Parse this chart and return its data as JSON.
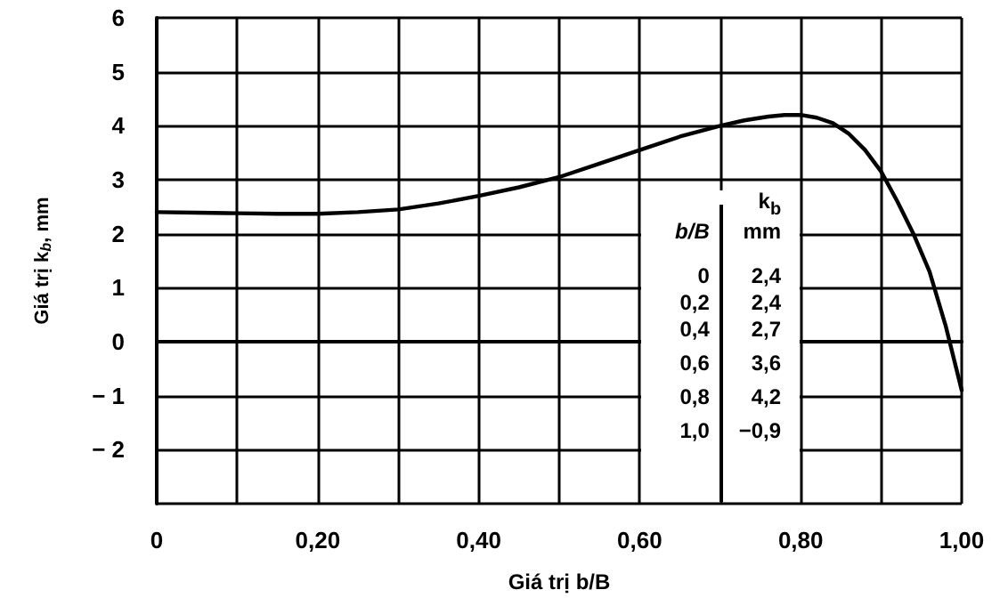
{
  "chart_data": {
    "type": "line",
    "xlabel": "Giá trị b/B",
    "ylabel": "Giá trị k$_{b}$, mm",
    "x": [
      0,
      0.05,
      0.1,
      0.15,
      0.2,
      0.25,
      0.3,
      0.35,
      0.4,
      0.45,
      0.5,
      0.55,
      0.6,
      0.65,
      0.7,
      0.73,
      0.76,
      0.78,
      0.8,
      0.82,
      0.84,
      0.86,
      0.88,
      0.9,
      0.92,
      0.94,
      0.96,
      0.98,
      1.0
    ],
    "series": [
      {
        "color": "#000000",
        "values": [
          2.4,
          2.39,
          2.38,
          2.37,
          2.37,
          2.4,
          2.45,
          2.56,
          2.7,
          2.86,
          3.05,
          3.3,
          3.55,
          3.8,
          4.0,
          4.1,
          4.17,
          4.2,
          4.2,
          4.15,
          4.05,
          3.85,
          3.55,
          3.15,
          2.6,
          2.0,
          1.3,
          0.3,
          -0.9
        ]
      }
    ],
    "xlim": [
      0,
      1
    ],
    "ylim": [
      -3,
      6
    ],
    "xticks": [
      0,
      {
        "value": 0.1,
        "label": null
      },
      {
        "value": 0.2,
        "label": "0,20"
      },
      {
        "value": 0.3,
        "label": null
      },
      {
        "value": 0.4,
        "label": "0,40"
      },
      {
        "value": 0.5,
        "label": null
      },
      {
        "value": 0.6,
        "label": "0,60"
      },
      {
        "value": 0.7,
        "label": null
      },
      {
        "value": 0.8,
        "label": "0,80"
      },
      {
        "value": 0.9,
        "label": null
      },
      {
        "value": 1,
        "label": "1,00"
      }
    ],
    "yticks": [
      {
        "value": -3,
        "label": null
      },
      {
        "value": -2,
        "label": "− 2"
      },
      {
        "value": -1,
        "label": "− 1"
      },
      0,
      1,
      2,
      3,
      4,
      5,
      6
    ],
    "grid": true,
    "marker": "none",
    "line_style": "solid",
    "annotations": [
      "b/B",
      "k$_{b}$\nmm",
      "0",
      "2,4",
      "0,2",
      "2,4",
      "0,4",
      "2,7",
      "0,6",
      "3,6",
      "0,8",
      "4,2",
      "1,0",
      "−0,9"
    ]
  }
}
